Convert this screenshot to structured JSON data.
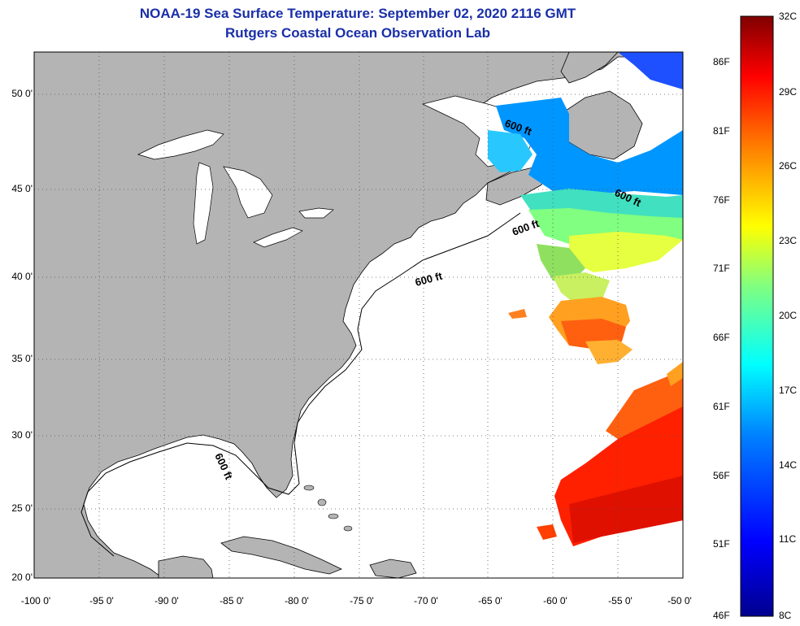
{
  "title": {
    "line1": "NOAA-19 Sea Surface Temperature:  September 02, 2020 2116 GMT",
    "line2": "Rutgers Coastal Ocean Observation Lab"
  },
  "axes": {
    "y_ticks": [
      "50 0'",
      "45 0'",
      "40 0'",
      "35 0'",
      "30 0'",
      "25 0'",
      "20 0'"
    ],
    "x_ticks": [
      "-100 0'",
      "-95 0'",
      "-90 0'",
      "-85 0'",
      "-80 0'",
      "-75 0'",
      "-70 0'",
      "-65 0'",
      "-60 0'",
      "-55 0'",
      "-50 0'"
    ],
    "lat_range": [
      20,
      52.5
    ],
    "lon_range": [
      -100,
      -50
    ]
  },
  "contour_labels": {
    "label": "600 ft"
  },
  "colorbar": {
    "fahrenheit": [
      "86F",
      "81F",
      "76F",
      "71F",
      "66F",
      "61F",
      "56F",
      "51F",
      "46F"
    ],
    "celsius": [
      "32C",
      "29C",
      "26C",
      "23C",
      "20C",
      "17C",
      "14C",
      "11C",
      "8C"
    ],
    "range_c": [
      8,
      32
    ],
    "colormap": [
      "#00008f",
      "#0000ff",
      "#0080ff",
      "#00ffff",
      "#80ff80",
      "#ffff00",
      "#ff8000",
      "#ff0000",
      "#800000"
    ]
  },
  "colors": {
    "land": "#b4b4b4",
    "ocean": "#ffffff",
    "title": "#1a2fa8",
    "grid": "#555555"
  }
}
